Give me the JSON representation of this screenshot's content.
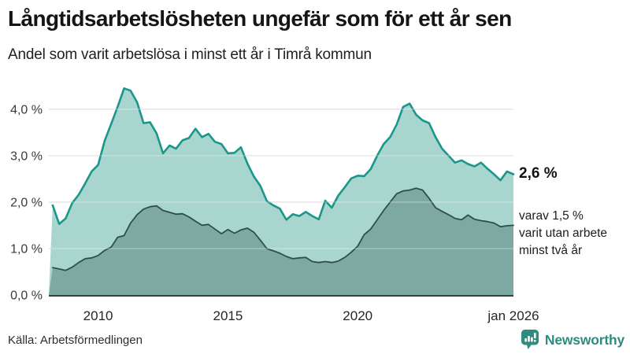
{
  "title": "Långtidsarbetslösheten ungefär som för ett år sen",
  "subtitle": "Andel som varit arbetslösa i minst ett år i Timrå kommun",
  "source": "Källa: Arbetsförmedlingen",
  "branding": {
    "name": "Newsworthy",
    "color": "#2e8c80"
  },
  "annotations": {
    "latest_total": "2,6 %",
    "note_lines": [
      "varav 1,5 %",
      "varit utan arbete",
      "minst två år"
    ]
  },
  "colors": {
    "outer_line": "#1a968a",
    "outer_fill": "#a8d5ce",
    "inner_line": "#2e4f49",
    "inner_fill": "#7ea9a2",
    "gridline": "#d9d9d9",
    "baseline": "#3d3d3d"
  },
  "chart_data": {
    "type": "area",
    "title": "Långtidsarbetslösheten ungefär som för ett år sen",
    "subtitle": "Andel som varit arbetslösa i minst ett år i Timrå kommun",
    "xlabel": "",
    "ylabel": "",
    "xlim": [
      2008.1,
      2026.0
    ],
    "ylim": [
      0,
      4.59
    ],
    "grid": true,
    "legend_position": "none",
    "x_ticks": [
      {
        "value": 2010,
        "label": "2010"
      },
      {
        "value": 2015,
        "label": "2015"
      },
      {
        "value": 2020,
        "label": "2020"
      },
      {
        "value": 2026,
        "label": "jan 2026"
      }
    ],
    "y_ticks": [
      {
        "value": 0,
        "label": "0,0 %"
      },
      {
        "value": 1,
        "label": "1,0 %"
      },
      {
        "value": 2,
        "label": "2,0 %"
      },
      {
        "value": 3,
        "label": "3,0 %"
      },
      {
        "value": 4,
        "label": "4,0 %"
      }
    ],
    "x": [
      2008.25,
      2008.5,
      2008.75,
      2009,
      2009.25,
      2009.5,
      2009.75,
      2010,
      2010.25,
      2010.5,
      2010.75,
      2011,
      2011.25,
      2011.5,
      2011.75,
      2012,
      2012.25,
      2012.5,
      2012.75,
      2013,
      2013.25,
      2013.5,
      2013.75,
      2014,
      2014.25,
      2014.5,
      2014.75,
      2015,
      2015.25,
      2015.5,
      2015.75,
      2016,
      2016.25,
      2016.5,
      2016.75,
      2017,
      2017.25,
      2017.5,
      2017.75,
      2018,
      2018.25,
      2018.5,
      2018.75,
      2019,
      2019.25,
      2019.5,
      2019.75,
      2020,
      2020.25,
      2020.5,
      2020.75,
      2021,
      2021.25,
      2021.5,
      2021.75,
      2022,
      2022.25,
      2022.5,
      2022.75,
      2023,
      2023.25,
      2023.5,
      2023.75,
      2024,
      2024.25,
      2024.5,
      2024.75,
      2025,
      2025.25,
      2025.5,
      2025.75,
      2026
    ],
    "series": [
      {
        "name": "Andel som varit arbetslösa i minst ett år",
        "latest_label": "2,6 %",
        "values": [
          1.93,
          1.53,
          1.65,
          1.98,
          2.16,
          2.4,
          2.66,
          2.8,
          3.32,
          3.68,
          4.05,
          4.45,
          4.4,
          4.15,
          3.7,
          3.72,
          3.48,
          3.05,
          3.22,
          3.15,
          3.33,
          3.38,
          3.58,
          3.4,
          3.47,
          3.3,
          3.25,
          3.05,
          3.06,
          3.18,
          2.83,
          2.55,
          2.35,
          2.02,
          1.93,
          1.86,
          1.62,
          1.74,
          1.7,
          1.79,
          1.7,
          1.63,
          2.03,
          1.88,
          2.14,
          2.32,
          2.51,
          2.57,
          2.56,
          2.71,
          3.0,
          3.25,
          3.4,
          3.67,
          4.05,
          4.12,
          3.88,
          3.76,
          3.7,
          3.4,
          3.15,
          3.0,
          2.85,
          2.9,
          2.82,
          2.77,
          2.85,
          2.72,
          2.6,
          2.47,
          2.66,
          2.6
        ]
      },
      {
        "name": "varav varit utan arbete minst två år",
        "latest_label": "1,5 %",
        "values": [
          0.59,
          0.56,
          0.53,
          0.6,
          0.7,
          0.78,
          0.8,
          0.85,
          0.96,
          1.03,
          1.24,
          1.28,
          1.55,
          1.73,
          1.85,
          1.9,
          1.92,
          1.82,
          1.78,
          1.74,
          1.75,
          1.68,
          1.59,
          1.5,
          1.52,
          1.42,
          1.32,
          1.41,
          1.33,
          1.4,
          1.44,
          1.35,
          1.18,
          1.0,
          0.95,
          0.9,
          0.83,
          0.78,
          0.8,
          0.81,
          0.72,
          0.7,
          0.72,
          0.7,
          0.73,
          0.81,
          0.92,
          1.05,
          1.3,
          1.42,
          1.62,
          1.82,
          2.0,
          2.18,
          2.24,
          2.26,
          2.3,
          2.26,
          2.08,
          1.88,
          1.8,
          1.73,
          1.65,
          1.62,
          1.72,
          1.63,
          1.6,
          1.58,
          1.55,
          1.47,
          1.49,
          1.5
        ]
      }
    ]
  }
}
